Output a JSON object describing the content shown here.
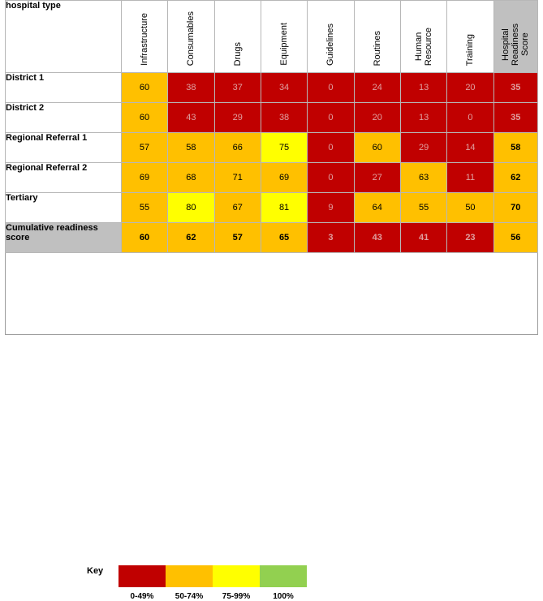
{
  "table": {
    "corner_label": "hospital type",
    "columns": [
      "Infrastructure",
      "Consumables",
      "Drugs",
      "Equipment",
      "Guidelines",
      "Routines",
      "Human\nResource",
      "Training",
      "Hospital\nReadiness\nScore"
    ],
    "rows": [
      {
        "label": "District 1",
        "values": [
          "60",
          "38",
          "37",
          "34",
          "0",
          "24",
          "13",
          "20",
          "35"
        ],
        "colors": [
          "org",
          "red",
          "red",
          "red",
          "red",
          "red",
          "red",
          "red",
          "red"
        ]
      },
      {
        "label": "District 2",
        "values": [
          "60",
          "43",
          "29",
          "38",
          "0",
          "20",
          "13",
          "0",
          "35"
        ],
        "colors": [
          "org",
          "red",
          "red",
          "red",
          "red",
          "red",
          "red",
          "red",
          "red"
        ]
      },
      {
        "label": "Regional Referral 1",
        "values": [
          "57",
          "58",
          "66",
          "75",
          "0",
          "60",
          "29",
          "14",
          "58"
        ],
        "colors": [
          "org",
          "org",
          "org",
          "yel",
          "red",
          "org",
          "red",
          "red",
          "org"
        ]
      },
      {
        "label": "Regional Referral 2",
        "values": [
          "69",
          "68",
          "71",
          "69",
          "0",
          "27",
          "63",
          "11",
          "62"
        ],
        "colors": [
          "org",
          "org",
          "org",
          "org",
          "red",
          "red",
          "org",
          "red",
          "org"
        ]
      },
      {
        "label": "Tertiary",
        "values": [
          "55",
          "80",
          "67",
          "81",
          "9",
          "64",
          "55",
          "50",
          "70"
        ],
        "colors": [
          "org",
          "yel",
          "org",
          "yel",
          "red",
          "org",
          "org",
          "org",
          "org"
        ]
      }
    ],
    "summary": {
      "label": "Cumulative readiness score",
      "values": [
        "60",
        "62",
        "57",
        "65",
        "3",
        "43",
        "41",
        "23",
        "56"
      ],
      "colors": [
        "org",
        "org",
        "org",
        "org",
        "red",
        "red",
        "red",
        "red",
        "org"
      ]
    }
  },
  "key": {
    "title": "Key",
    "items": [
      {
        "label": "0-49%",
        "color": "#c00000"
      },
      {
        "label": "50-74%",
        "color": "#ffc000"
      },
      {
        "label": "75-99%",
        "color": "#ffff00"
      },
      {
        "label": "100%",
        "color": "#92d050"
      }
    ]
  }
}
